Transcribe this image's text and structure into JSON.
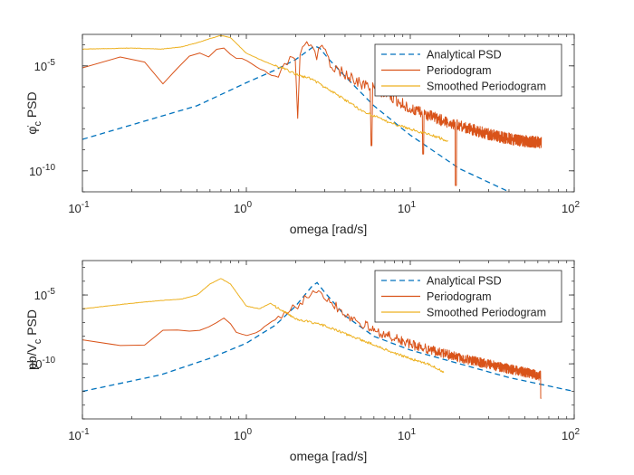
{
  "colors": {
    "analytical": "#0072BD",
    "periodogram": "#D95319",
    "smoothed": "#EDB120",
    "axis": "#262626"
  },
  "chart_data": [
    {
      "type": "line",
      "xscale": "log",
      "yscale": "log",
      "xlim": [
        0.1,
        100
      ],
      "ylim_log10": [
        -11,
        -3.5
      ],
      "xlabel": "omega [rad/s]",
      "ylabel_main": "φ̇",
      "ylabel_sub": "c",
      "ylabel_tail": " PSD",
      "xticks": [
        {
          "v": 0.1,
          "b": "10",
          "e": "-1"
        },
        {
          "v": 1,
          "b": "10",
          "e": "0"
        },
        {
          "v": 10,
          "b": "10",
          "e": "1"
        },
        {
          "v": 100,
          "b": "10",
          "e": "2"
        }
      ],
      "yticks": [
        {
          "v": -5,
          "b": "10",
          "e": "-5"
        },
        {
          "v": -10,
          "b": "10",
          "e": "-10"
        }
      ],
      "legend_position": "top-right",
      "series": [
        {
          "name": "Analytical PSD",
          "style": "dashed",
          "color_key": "analytical",
          "points": [
            [
              0.1,
              -8.5
            ],
            [
              0.5,
              -6.9
            ],
            [
              1.0,
              -5.8
            ],
            [
              1.5,
              -5.2
            ],
            [
              2.0,
              -4.7
            ],
            [
              2.4,
              -4.25
            ],
            [
              2.6,
              -4.05
            ],
            [
              2.8,
              -4.15
            ],
            [
              3.2,
              -4.7
            ],
            [
              4.0,
              -5.5
            ],
            [
              6.0,
              -6.9
            ],
            [
              10.0,
              -8.3
            ],
            [
              20.0,
              -9.9
            ],
            [
              40.0,
              -11.0
            ],
            [
              46.0,
              -11.4
            ]
          ]
        },
        {
          "name": "Periodogram",
          "style": "solid",
          "color_key": "periodogram",
          "points": [
            [
              0.1,
              -5.1
            ],
            [
              0.15,
              -4.8
            ],
            [
              0.2,
              -4.3
            ],
            [
              0.26,
              -5.0
            ],
            [
              0.32,
              -6.0
            ],
            [
              0.4,
              -4.8
            ],
            [
              0.5,
              -4.3
            ],
            [
              0.6,
              -4.6
            ],
            [
              0.7,
              -4.0
            ],
            [
              0.85,
              -4.6
            ],
            [
              1.0,
              -4.7
            ],
            [
              1.2,
              -5.1
            ],
            [
              1.5,
              -5.5
            ],
            [
              1.7,
              -4.7
            ],
            [
              2.0,
              -4.6
            ],
            [
              2.2,
              -4.0
            ],
            [
              2.5,
              -4.1
            ],
            [
              2.7,
              -4.4
            ],
            [
              3.0,
              -4.1
            ],
            [
              3.3,
              -5.0
            ],
            [
              4.0,
              -5.3
            ],
            [
              5.0,
              -5.8
            ],
            [
              6.0,
              -6.0
            ],
            [
              8.0,
              -6.5
            ],
            [
              10.0,
              -7.0
            ],
            [
              15.0,
              -7.5
            ],
            [
              20.0,
              -7.8
            ],
            [
              30.0,
              -8.2
            ],
            [
              45.0,
              -8.5
            ],
            [
              63.0,
              -8.6
            ]
          ],
          "noise_amp": 0.55,
          "dips": [
            [
              1.68,
              -8.0
            ],
            [
              2.05,
              -7.5
            ],
            [
              5.8,
              -8.8
            ],
            [
              12.0,
              -9.2
            ],
            [
              19.0,
              -10.7
            ]
          ]
        },
        {
          "name": "Smoothed Periodogram",
          "style": "solid",
          "color_key": "smoothed",
          "points": [
            [
              0.1,
              -4.2
            ],
            [
              0.2,
              -4.15
            ],
            [
              0.3,
              -4.2
            ],
            [
              0.4,
              -4.1
            ],
            [
              0.5,
              -3.9
            ],
            [
              0.6,
              -3.7
            ],
            [
              0.7,
              -3.55
            ],
            [
              0.8,
              -3.65
            ],
            [
              1.0,
              -4.4
            ],
            [
              1.3,
              -4.8
            ],
            [
              1.5,
              -5.0
            ],
            [
              1.8,
              -5.2
            ],
            [
              2.0,
              -5.4
            ],
            [
              2.5,
              -5.6
            ],
            [
              3.0,
              -6.0
            ],
            [
              4.0,
              -6.6
            ],
            [
              5.0,
              -7.1
            ],
            [
              7.0,
              -7.6
            ],
            [
              10.0,
              -8.0
            ],
            [
              15.0,
              -8.4
            ],
            [
              17.0,
              -8.6
            ]
          ],
          "noise_amp": 0.12
        }
      ]
    },
    {
      "type": "line",
      "xscale": "log",
      "yscale": "log",
      "xlim": [
        0.1,
        100
      ],
      "ylim_log10": [
        -14,
        -2.5
      ],
      "xlabel": "omega [rad/s]",
      "ylabel_main": "pb/V",
      "ylabel_sub": "c",
      "ylabel_tail": " PSD",
      "xticks": [
        {
          "v": 0.1,
          "b": "10",
          "e": "-1"
        },
        {
          "v": 1,
          "b": "10",
          "e": "0"
        },
        {
          "v": 10,
          "b": "10",
          "e": "1"
        },
        {
          "v": 100,
          "b": "10",
          "e": "2"
        }
      ],
      "yticks": [
        {
          "v": -5,
          "b": "10",
          "e": "-5"
        },
        {
          "v": -10,
          "b": "10",
          "e": "-10"
        }
      ],
      "legend_position": "top-right",
      "series": [
        {
          "name": "Analytical PSD",
          "style": "dashed",
          "color_key": "analytical",
          "points": [
            [
              0.1,
              -12.0
            ],
            [
              0.3,
              -10.8
            ],
            [
              0.6,
              -9.6
            ],
            [
              1.0,
              -8.5
            ],
            [
              1.5,
              -7.2
            ],
            [
              2.0,
              -5.8
            ],
            [
              2.5,
              -4.4
            ],
            [
              2.7,
              -4.1
            ],
            [
              3.0,
              -4.8
            ],
            [
              4.0,
              -6.5
            ],
            [
              6.0,
              -8.0
            ],
            [
              10.0,
              -9.0
            ],
            [
              20.0,
              -10.0
            ],
            [
              40.0,
              -11.0
            ],
            [
              100.0,
              -12.0
            ]
          ]
        },
        {
          "name": "Periodogram",
          "style": "solid",
          "color_key": "periodogram",
          "points": [
            [
              0.1,
              -8.2
            ],
            [
              0.15,
              -8.0
            ],
            [
              0.2,
              -9.5
            ],
            [
              0.26,
              -8.3
            ],
            [
              0.32,
              -7.4
            ],
            [
              0.4,
              -7.6
            ],
            [
              0.5,
              -7.6
            ],
            [
              0.6,
              -7.3
            ],
            [
              0.75,
              -6.6
            ],
            [
              0.85,
              -7.6
            ],
            [
              1.0,
              -8.0
            ],
            [
              1.2,
              -7.6
            ],
            [
              1.4,
              -7.0
            ],
            [
              1.7,
              -6.5
            ],
            [
              2.0,
              -5.8
            ],
            [
              2.5,
              -4.6
            ],
            [
              2.7,
              -4.4
            ],
            [
              3.0,
              -5.0
            ],
            [
              4.0,
              -6.3
            ],
            [
              6.0,
              -7.5
            ],
            [
              10.0,
              -8.5
            ],
            [
              20.0,
              -9.5
            ],
            [
              40.0,
              -10.3
            ],
            [
              63.0,
              -10.8
            ]
          ],
          "noise_amp": 0.7,
          "dips": [
            [
              1.45,
              -8.8
            ],
            [
              1.6,
              -9.5
            ],
            [
              2.1,
              -7.6
            ],
            [
              63.0,
              -12.5
            ]
          ]
        },
        {
          "name": "Smoothed Periodogram",
          "style": "solid",
          "color_key": "smoothed",
          "points": [
            [
              0.1,
              -6.0
            ],
            [
              0.2,
              -5.6
            ],
            [
              0.3,
              -5.4
            ],
            [
              0.4,
              -5.3
            ],
            [
              0.5,
              -5.0
            ],
            [
              0.6,
              -4.2
            ],
            [
              0.7,
              -3.8
            ],
            [
              0.8,
              -4.2
            ],
            [
              1.0,
              -5.8
            ],
            [
              1.2,
              -6.0
            ],
            [
              1.4,
              -5.6
            ],
            [
              1.7,
              -6.2
            ],
            [
              2.0,
              -6.7
            ],
            [
              2.5,
              -7.0
            ],
            [
              3.0,
              -7.2
            ],
            [
              4.0,
              -7.8
            ],
            [
              6.0,
              -8.6
            ],
            [
              8.0,
              -9.2
            ],
            [
              10.0,
              -9.6
            ],
            [
              13.0,
              -10.0
            ],
            [
              16.0,
              -10.6
            ]
          ],
          "noise_amp": 0.18
        }
      ]
    }
  ]
}
